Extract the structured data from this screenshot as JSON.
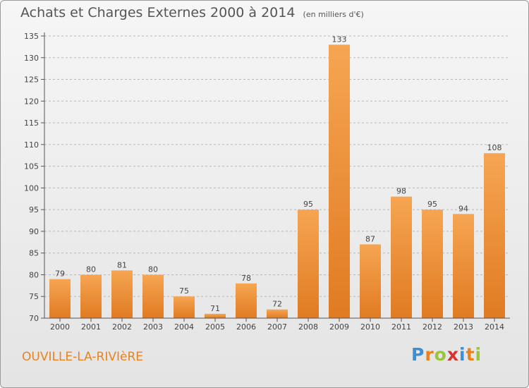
{
  "header": {
    "title": "Achats et Charges Externes 2000 à 2014",
    "unit": "(en milliers d'€)"
  },
  "footer": {
    "town": "OUVILLE-LA-RIVIèRE",
    "brand_letters": [
      "P",
      "r",
      "o",
      "x",
      "i",
      "t",
      "i"
    ],
    "brand_colors": [
      "#3a8fd6",
      "#e8821f",
      "#9bc33b",
      "#d8322e",
      "#3a8fd6",
      "#e8821f",
      "#9bc33b"
    ]
  },
  "colors": {
    "bar_top": "#f6a552",
    "bar_bottom": "#e07b22",
    "grid": "#b8b8b8",
    "axis_text": "#444444",
    "town": "#e8821f"
  },
  "chart_data": {
    "type": "bar",
    "title": "Achats et Charges Externes 2000 à 2014",
    "subtitle": "(en milliers d'€)",
    "xlabel": "",
    "ylabel": "",
    "categories": [
      "2000",
      "2001",
      "2002",
      "2003",
      "2004",
      "2005",
      "2006",
      "2007",
      "2008",
      "2009",
      "2010",
      "2011",
      "2012",
      "2013",
      "2014"
    ],
    "values": [
      79,
      80,
      81,
      80,
      75,
      71,
      78,
      72,
      95,
      133,
      87,
      98,
      95,
      94,
      108
    ],
    "ylim": [
      70,
      135
    ],
    "yticks": [
      70,
      75,
      80,
      85,
      90,
      95,
      100,
      105,
      110,
      115,
      120,
      125,
      130,
      135
    ],
    "grid": "horizontal dashed",
    "legend": "none"
  }
}
